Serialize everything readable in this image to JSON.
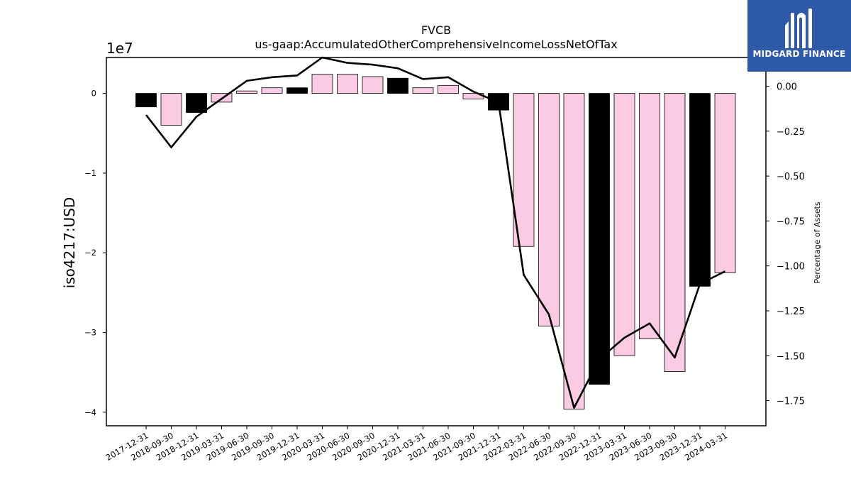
{
  "logo": {
    "text": "MIDGARD FINANCE",
    "background": "#2f5aa8"
  },
  "chart_data": {
    "type": "bar",
    "title": "FVCB",
    "subtitle": "us-gaap:AccumulatedOtherComprehensiveIncomeLossNetOfTax",
    "ylabel": "iso4217:USD",
    "y2label": "Percentage of Assets",
    "y_offset_label": "1e7",
    "ylim": [
      -4.17,
      0.45
    ],
    "y2lim": [
      -1.89,
      0.16
    ],
    "yticks": [
      0,
      -1,
      -2,
      -3,
      -4
    ],
    "y2ticks": [
      0.0,
      -0.25,
      -0.5,
      -0.75,
      -1.0,
      -1.25,
      -1.5,
      -1.75
    ],
    "y2tick_labels": [
      "0.00",
      "−0.25",
      "−0.50",
      "−0.75",
      "−1.00",
      "−1.25",
      "−1.50",
      "−1.75"
    ],
    "ytick_labels": [
      "0",
      "−1",
      "−2",
      "−3",
      "−4"
    ],
    "categories": [
      "2017-12-31",
      "2018-09-30",
      "2018-12-31",
      "2019-03-31",
      "2019-06-30",
      "2019-09-30",
      "2019-12-31",
      "2020-03-31",
      "2020-06-30",
      "2020-09-30",
      "2020-12-31",
      "2021-03-31",
      "2021-06-30",
      "2021-09-30",
      "2021-12-31",
      "2022-03-31",
      "2022-06-30",
      "2022-09-30",
      "2022-12-31",
      "2023-03-31",
      "2023-06-30",
      "2023-09-30",
      "2023-12-31",
      "2024-03-31"
    ],
    "series": [
      {
        "type": "bar",
        "axis": "left",
        "values": [
          -0.17,
          -0.4,
          -0.24,
          -0.11,
          0.03,
          0.07,
          0.07,
          0.24,
          0.24,
          0.21,
          0.19,
          0.07,
          0.1,
          -0.07,
          -0.21,
          -1.92,
          -2.92,
          -3.96,
          -3.65,
          -3.29,
          -3.08,
          -3.49,
          -2.42,
          -2.25
        ],
        "colors": [
          "#000000",
          "#fbcbe3",
          "#000000",
          "#fbcbe3",
          "#fbcbe3",
          "#fbcbe3",
          "#000000",
          "#fbcbe3",
          "#fbcbe3",
          "#fbcbe3",
          "#000000",
          "#fbcbe3",
          "#fbcbe3",
          "#fbcbe3",
          "#000000",
          "#fbcbe3",
          "#fbcbe3",
          "#fbcbe3",
          "#000000",
          "#fbcbe3",
          "#fbcbe3",
          "#fbcbe3",
          "#000000",
          "#fbcbe3"
        ]
      },
      {
        "type": "line",
        "axis": "right",
        "color": "#000000",
        "values": [
          -0.16,
          -0.34,
          -0.17,
          -0.07,
          0.03,
          0.05,
          0.06,
          0.16,
          0.13,
          0.12,
          0.1,
          0.04,
          0.05,
          -0.03,
          -0.09,
          -1.05,
          -1.27,
          -1.79,
          -1.52,
          -1.4,
          -1.32,
          -1.51,
          -1.1,
          -1.03
        ]
      }
    ],
    "grid": false,
    "legend": "none"
  }
}
